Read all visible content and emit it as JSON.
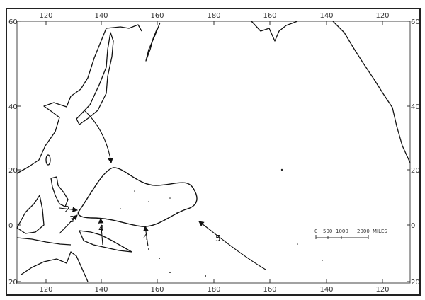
{
  "map": {
    "top_longitude_labels": [
      "120",
      "140",
      "160",
      "180",
      "160",
      "140",
      "120"
    ],
    "bottom_longitude_labels": [
      "120",
      "140",
      "160",
      "180",
      "160",
      "140",
      "120"
    ],
    "left_latitude_labels": [
      "60",
      "40",
      "20",
      "0",
      "20"
    ],
    "right_latitude_labels": [
      "60",
      "40",
      "20",
      "0",
      "20"
    ],
    "route_labels": [
      "2",
      "3",
      "4",
      "4",
      "5"
    ],
    "scale_bar": {
      "ticks": [
        "0",
        "500",
        "1000",
        "2000"
      ],
      "unit": "MILES"
    },
    "colors": {
      "ink": "#111111",
      "paper": "#ffffff"
    }
  }
}
